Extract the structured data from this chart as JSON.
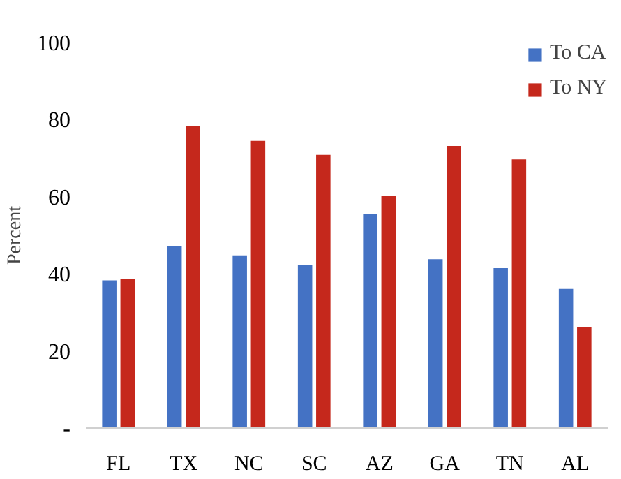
{
  "chart_data": {
    "type": "bar",
    "ylabel": "Percent",
    "categories": [
      "FL",
      "TX",
      "NC",
      "SC",
      "AZ",
      "GA",
      "TN",
      "AL"
    ],
    "series": [
      {
        "name": "To CA",
        "color": "#4472c4",
        "values": [
          38.3,
          47.1,
          44.8,
          42.2,
          55.6,
          43.8,
          41.5,
          36.1
        ]
      },
      {
        "name": "To NY",
        "color": "#c5281c",
        "values": [
          38.7,
          78.4,
          74.5,
          70.9,
          60.2,
          73.2,
          69.7,
          26.2
        ]
      }
    ],
    "ylim": [
      0,
      100
    ],
    "yticks": [
      {
        "value": 0,
        "label": "-"
      },
      20,
      40,
      60,
      80,
      100
    ],
    "grid": false,
    "legend": "top right"
  }
}
